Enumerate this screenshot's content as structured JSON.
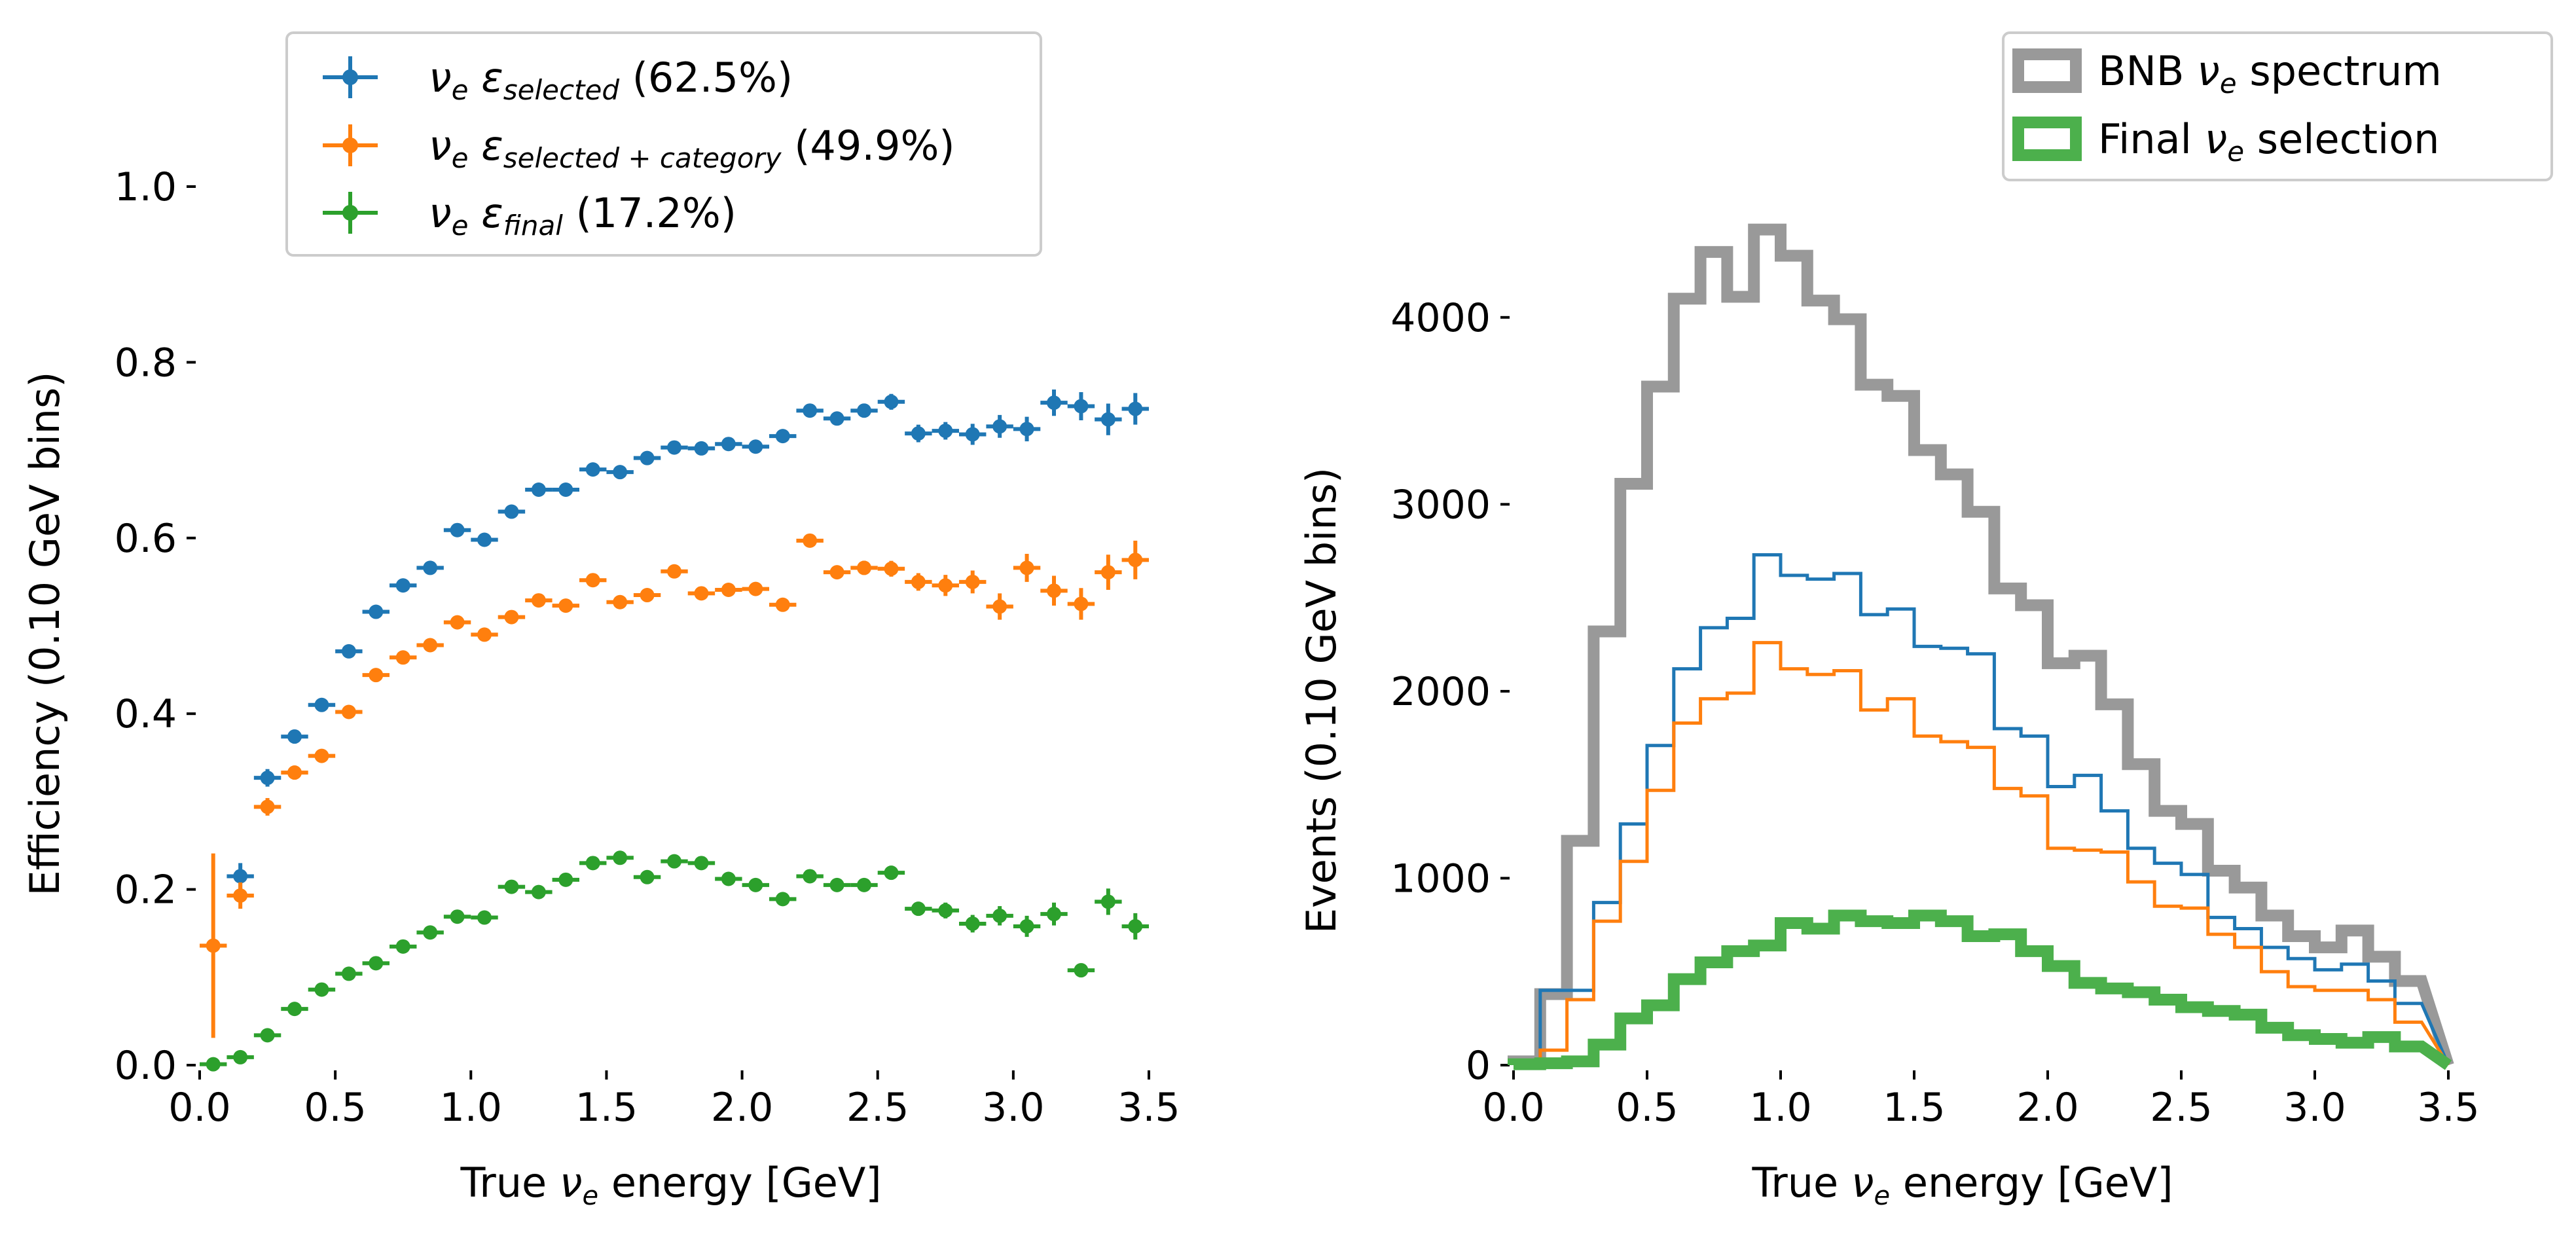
{
  "chart_data": [
    {
      "type": "scatter",
      "panel": "left",
      "xlabel": {
        "pre": "True ",
        "sym": "ν",
        "sub": "e",
        "post": " energy [GeV]"
      },
      "ylabel": "Efficiency (0.10 GeV bins)",
      "xlim": [
        0.0,
        3.5
      ],
      "ylim": [
        0.0,
        1.0
      ],
      "xticks": [
        "0.0",
        "0.5",
        "1.0",
        "1.5",
        "2.0",
        "2.5",
        "3.0",
        "3.5"
      ],
      "yticks": [
        "0.0",
        "0.2",
        "0.4",
        "0.6",
        "0.8",
        "1.0"
      ],
      "grid": false,
      "legend_position": "top",
      "x": [
        0.05,
        0.15,
        0.25,
        0.35,
        0.45,
        0.55,
        0.65,
        0.75,
        0.85,
        0.95,
        1.05,
        1.15,
        1.25,
        1.35,
        1.45,
        1.55,
        1.65,
        1.75,
        1.85,
        1.95,
        2.05,
        2.15,
        2.25,
        2.35,
        2.45,
        2.55,
        2.65,
        2.75,
        2.85,
        2.95,
        3.05,
        3.15,
        3.25,
        3.35,
        3.45
      ],
      "series": [
        {
          "color": "#1f77b4",
          "legend": {
            "sym": "ν",
            "sub": "e",
            "eps": "ε",
            "epssub": "selected",
            "pct": " (62.5%)"
          },
          "x": [
            0.15,
            0.25,
            0.35,
            0.45,
            0.55,
            0.65,
            0.75,
            0.85,
            0.95,
            1.05,
            1.15,
            1.25,
            1.35,
            1.45,
            1.55,
            1.65,
            1.75,
            1.85,
            1.95,
            2.05,
            2.15,
            2.25,
            2.35,
            2.45,
            2.55,
            2.65,
            2.75,
            2.85,
            2.95,
            3.05,
            3.15,
            3.25,
            3.35,
            3.45
          ],
          "values": [
            0.215,
            0.327,
            0.374,
            0.41,
            0.471,
            0.516,
            0.546,
            0.566,
            0.609,
            0.598,
            0.63,
            0.655,
            0.655,
            0.678,
            0.675,
            0.691,
            0.703,
            0.702,
            0.707,
            0.704,
            0.716,
            0.745,
            0.736,
            0.745,
            0.755,
            0.719,
            0.722,
            0.718,
            0.727,
            0.724,
            0.754,
            0.75,
            0.735,
            0.747
          ],
          "errors": [
            0.015,
            0.01,
            0.008,
            0.007,
            0.006,
            0.006,
            0.006,
            0.006,
            0.006,
            0.006,
            0.006,
            0.006,
            0.006,
            0.006,
            0.006,
            0.006,
            0.006,
            0.006,
            0.006,
            0.006,
            0.006,
            0.007,
            0.007,
            0.008,
            0.009,
            0.01,
            0.01,
            0.012,
            0.013,
            0.014,
            0.015,
            0.016,
            0.018,
            0.018
          ]
        },
        {
          "color": "#ff7f0e",
          "legend": {
            "sym": "ν",
            "sub": "e",
            "eps": "ε",
            "epssub": "selected + category",
            "pct": " (49.9%)"
          },
          "x": [
            0.05,
            0.15,
            0.25,
            0.35,
            0.45,
            0.55,
            0.65,
            0.75,
            0.85,
            0.95,
            1.05,
            1.15,
            1.25,
            1.35,
            1.45,
            1.55,
            1.65,
            1.75,
            1.85,
            1.95,
            2.05,
            2.15,
            2.25,
            2.35,
            2.45,
            2.55,
            2.65,
            2.75,
            2.85,
            2.95,
            3.05,
            3.15,
            3.25,
            3.35,
            3.45
          ],
          "values": [
            0.136,
            0.193,
            0.294,
            0.333,
            0.352,
            0.402,
            0.444,
            0.464,
            0.478,
            0.504,
            0.49,
            0.51,
            0.529,
            0.523,
            0.552,
            0.527,
            0.535,
            0.562,
            0.537,
            0.541,
            0.542,
            0.524,
            0.597,
            0.561,
            0.566,
            0.565,
            0.55,
            0.546,
            0.55,
            0.522,
            0.566,
            0.54,
            0.525,
            0.561,
            0.575
          ],
          "errors": [
            0.105,
            0.015,
            0.01,
            0.008,
            0.007,
            0.006,
            0.006,
            0.006,
            0.006,
            0.006,
            0.006,
            0.006,
            0.006,
            0.006,
            0.006,
            0.006,
            0.006,
            0.006,
            0.006,
            0.006,
            0.006,
            0.006,
            0.007,
            0.007,
            0.008,
            0.009,
            0.01,
            0.012,
            0.013,
            0.015,
            0.016,
            0.017,
            0.018,
            0.02,
            0.022
          ]
        },
        {
          "color": "#2ca02c",
          "legend": {
            "sym": "ν",
            "sub": "e",
            "eps": "ε",
            "epssub": "final",
            "pct": " (17.2%)"
          },
          "x": [
            0.05,
            0.15,
            0.25,
            0.35,
            0.45,
            0.55,
            0.65,
            0.75,
            0.85,
            0.95,
            1.05,
            1.15,
            1.25,
            1.35,
            1.45,
            1.55,
            1.65,
            1.75,
            1.85,
            1.95,
            2.05,
            2.15,
            2.25,
            2.35,
            2.45,
            2.55,
            2.65,
            2.75,
            2.85,
            2.95,
            3.05,
            3.15,
            3.25,
            3.35,
            3.45
          ],
          "values": [
            0.001,
            0.009,
            0.034,
            0.064,
            0.086,
            0.104,
            0.116,
            0.135,
            0.151,
            0.169,
            0.168,
            0.203,
            0.197,
            0.211,
            0.23,
            0.236,
            0.214,
            0.232,
            0.23,
            0.212,
            0.205,
            0.189,
            0.215,
            0.205,
            0.205,
            0.219,
            0.178,
            0.176,
            0.161,
            0.17,
            0.158,
            0.172,
            0.108,
            0.186,
            0.158
          ],
          "errors": [
            0.002,
            0.004,
            0.005,
            0.005,
            0.005,
            0.005,
            0.005,
            0.005,
            0.005,
            0.005,
            0.005,
            0.005,
            0.005,
            0.005,
            0.005,
            0.005,
            0.005,
            0.005,
            0.005,
            0.005,
            0.005,
            0.005,
            0.006,
            0.006,
            0.007,
            0.008,
            0.008,
            0.009,
            0.01,
            0.011,
            0.012,
            0.013,
            0.008,
            0.015,
            0.015
          ]
        }
      ]
    },
    {
      "type": "histogram",
      "panel": "right",
      "xlabel": {
        "pre": "True ",
        "sym": "ν",
        "sub": "e",
        "post": " energy [GeV]"
      },
      "ylabel": "Events (0.10 GeV bins)",
      "xlim": [
        0.0,
        3.5
      ],
      "ylim": [
        0,
        4500
      ],
      "xticks": [
        "0.0",
        "0.5",
        "1.0",
        "1.5",
        "2.0",
        "2.5",
        "3.0",
        "3.5"
      ],
      "yticks": [
        "0",
        "1000",
        "2000",
        "3000",
        "4000"
      ],
      "grid": false,
      "legend_position": "top-right",
      "bin_edges": [
        0.0,
        0.1,
        0.2,
        0.3,
        0.4,
        0.5,
        0.6,
        0.7,
        0.8,
        0.9,
        1.0,
        1.1,
        1.2,
        1.3,
        1.4,
        1.5,
        1.6,
        1.7,
        1.8,
        1.9,
        2.0,
        2.1,
        2.2,
        2.3,
        2.4,
        2.5,
        2.6,
        2.7,
        2.8,
        2.9,
        3.0,
        3.1,
        3.2,
        3.3,
        3.4
      ],
      "series": [
        {
          "legend": {
            "pre": "BNB ",
            "sym": "ν",
            "sub": "e",
            "post": " spectrum"
          },
          "color": "#999999",
          "style": "thick",
          "values": [
            20,
            380,
            1200,
            2320,
            3110,
            3630,
            4100,
            4350,
            4110,
            4470,
            4330,
            4090,
            3990,
            3640,
            3580,
            3290,
            3160,
            2960,
            2550,
            2460,
            2150,
            2190,
            1930,
            1610,
            1360,
            1290,
            1040,
            950,
            800,
            690,
            630,
            720,
            580,
            450
          ]
        },
        {
          "color": "#1f77b4",
          "style": "thin",
          "values": [
            0,
            400,
            400,
            870,
            1290,
            1710,
            2120,
            2340,
            2390,
            2730,
            2620,
            2600,
            2630,
            2410,
            2440,
            2240,
            2230,
            2200,
            1800,
            1760,
            1490,
            1550,
            1360,
            1160,
            1080,
            1020,
            790,
            730,
            630,
            570,
            510,
            540,
            450,
            330
          ]
        },
        {
          "color": "#ff7f0e",
          "style": "thin",
          "values": [
            0,
            80,
            350,
            770,
            1090,
            1470,
            1830,
            1960,
            1990,
            2260,
            2120,
            2090,
            2110,
            1900,
            1960,
            1760,
            1730,
            1700,
            1480,
            1440,
            1160,
            1150,
            1140,
            980,
            850,
            840,
            700,
            630,
            500,
            420,
            400,
            400,
            350,
            230
          ]
        },
        {
          "legend": {
            "pre": "Final ",
            "sym": "ν",
            "sub": "e",
            "post": " selection"
          },
          "color": "#4cb04c",
          "style": "thick",
          "values": [
            5,
            10,
            20,
            110,
            250,
            320,
            460,
            550,
            610,
            640,
            760,
            730,
            800,
            770,
            760,
            800,
            770,
            690,
            700,
            610,
            530,
            440,
            410,
            390,
            350,
            310,
            290,
            270,
            200,
            160,
            140,
            120,
            150,
            100
          ]
        }
      ]
    }
  ]
}
